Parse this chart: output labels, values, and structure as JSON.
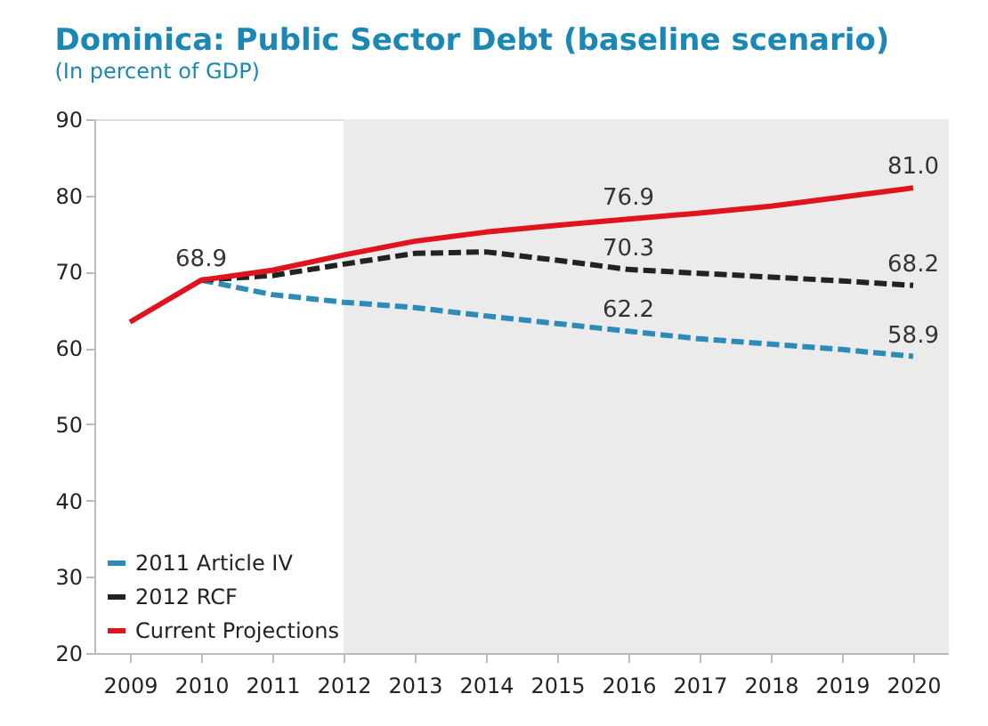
{
  "chart_data": {
    "type": "line",
    "title": "Dominica: Public Sector Debt (baseline scenario)",
    "subtitle": "(In percent of GDP)",
    "x": [
      2009,
      2010,
      2011,
      2012,
      2013,
      2014,
      2015,
      2016,
      2017,
      2018,
      2019,
      2020
    ],
    "xlim": [
      2008.5,
      2020.5
    ],
    "xticks": [
      2009,
      2010,
      2011,
      2012,
      2013,
      2014,
      2015,
      2016,
      2017,
      2018,
      2019,
      2020
    ],
    "ylim": [
      20,
      90
    ],
    "yticks": [
      20,
      30,
      40,
      50,
      60,
      70,
      80,
      90
    ],
    "series": [
      {
        "name": "2011 Article IV",
        "color": "#2e8bb8",
        "line_style": "dashed",
        "values": [
          null,
          68.9,
          67.0,
          66.0,
          65.3,
          64.2,
          63.2,
          62.2,
          61.2,
          60.5,
          59.8,
          58.9
        ]
      },
      {
        "name": "2012 RCF",
        "color": "#222222",
        "line_style": "dashed",
        "values": [
          null,
          68.9,
          69.5,
          71.0,
          72.4,
          72.6,
          71.5,
          70.3,
          69.8,
          69.3,
          68.8,
          68.2
        ]
      },
      {
        "name": "Current Projections",
        "color": "#e0141e",
        "line_style": "solid",
        "values": [
          63.4,
          68.9,
          70.2,
          72.2,
          74.0,
          75.2,
          76.1,
          76.9,
          77.7,
          78.6,
          79.8,
          81.0
        ]
      }
    ],
    "bands": [
      {
        "axis": "x",
        "from": 2012,
        "to": 2020.5,
        "color": "#ebebeb"
      }
    ],
    "annotations": [
      {
        "text": "68.9",
        "x": 2010,
        "y": 68.9
      },
      {
        "text": "76.9",
        "x": 2016,
        "y": 76.9
      },
      {
        "text": "81.0",
        "x": 2020,
        "y": 81.0
      },
      {
        "text": "70.3",
        "x": 2016,
        "y": 70.3
      },
      {
        "text": "68.2",
        "x": 2020,
        "y": 68.2
      },
      {
        "text": "62.2",
        "x": 2016,
        "y": 62.2
      },
      {
        "text": "58.9",
        "x": 2020,
        "y": 58.9
      }
    ],
    "grid": false,
    "legend": "bottom left",
    "marker": "none"
  }
}
